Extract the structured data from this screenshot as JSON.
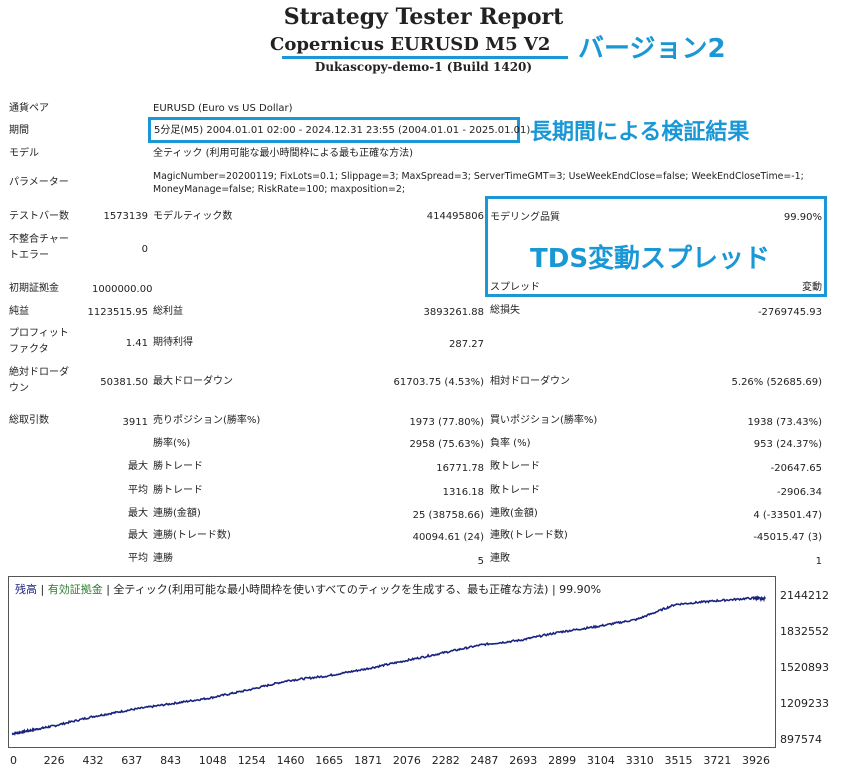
{
  "report": {
    "title": "Strategy Tester Report",
    "subtitle": "Copernicus  EURUSD  M5  V2",
    "server": "Dukascopy-demo-1 (Build 1420)"
  },
  "annotations": {
    "version": "バージョン2",
    "long_period": "長期間による検証結果",
    "spread": "TDS変動スプレッド"
  },
  "settings": {
    "symbol_label": "通貨ペア",
    "symbol_value": "EURUSD (Euro vs US Dollar)",
    "period_label": "期間",
    "period_value": "5分足(M5) 2004.01.01 02:00 - 2024.12.31 23:55 (2004.01.01 - 2025.01.01)",
    "model_label": "モデル",
    "model_value": "全ティック (利用可能な最小時間枠による最も正確な方法)",
    "params_label": "パラメーター",
    "params_line1": "MagicNumber=20200119; FixLots=0.1; Slippage=3; MaxSpread=3; ServerTimeGMT=3; UseWeekEndClose=false; WeekEndCloseTime=-1;",
    "params_line2": "MoneyManage=false; RiskRate=100; maxposition=2;"
  },
  "stats": {
    "bars_label": "テストバー数",
    "bars_value": "1573139",
    "ticks_label": "モデルティック数",
    "ticks_value": "414495806",
    "quality_label": "モデリング品質",
    "quality_value": "99.90%",
    "mismatch_label1": "不整合チャー",
    "mismatch_label2": "トエラー",
    "mismatch_value": "0",
    "deposit_label": "初期証拠金",
    "deposit_value": "1000000.00",
    "spread_label": "スプレッド",
    "spread_value": "変動",
    "net_label": "純益",
    "net_value": "1123515.95",
    "gross_profit_label": "総利益",
    "gross_profit_value": "3893261.88",
    "gross_loss_label": "総損失",
    "gross_loss_value": "-2769745.93",
    "pf_label1": "プロフィット",
    "pf_label2": "ファクタ",
    "pf_value": "1.41",
    "expected_label": "期待利得",
    "expected_value": "287.27",
    "abs_dd_label1": "絶対ドローダ",
    "abs_dd_label2": "ウン",
    "abs_dd_value": "50381.50",
    "max_dd_label": "最大ドローダウン",
    "max_dd_value": "61703.75 (4.53%)",
    "rel_dd_label": "相対ドローダウン",
    "rel_dd_value": "5.26% (52685.69)",
    "trades_label": "総取引数",
    "trades_value": "3911",
    "short_label": "売りポジション(勝率%)",
    "short_value": "1973 (77.80%)",
    "long_label": "買いポジション(勝率%)",
    "long_value": "1938 (73.43%)",
    "win_label": "勝率(%)",
    "win_value": "2958 (75.63%)",
    "loss_label": "負率 (%)",
    "loss_value": "953 (24.37%)",
    "max_word": "最大",
    "avg_word": "平均",
    "largest_win_label": "勝トレード",
    "largest_win_value": "16771.78",
    "largest_loss_label": "敗トレード",
    "largest_loss_value": "-20647.65",
    "avg_win_label": "勝トレード",
    "avg_win_value": "1316.18",
    "avg_loss_label": "敗トレード",
    "avg_loss_value": "-2906.34",
    "cons_win_amt_label": "連勝(金額)",
    "cons_win_amt_value": "25 (38758.66)",
    "cons_loss_amt_label": "連敗(金額)",
    "cons_loss_amt_value": "4 (-33501.47)",
    "cons_win_tr_label": "連勝(トレード数)",
    "cons_win_tr_value": "40094.61 (24)",
    "cons_loss_tr_label": "連敗(トレード数)",
    "cons_loss_tr_value": "-45015.47 (3)",
    "avg_cons_win_label": "連勝",
    "avg_cons_win_value": "5",
    "avg_cons_loss_label": "連敗",
    "avg_cons_loss_value": "1"
  },
  "chart_legend": {
    "balance": "残高",
    "sep1": " | ",
    "equity": "有効証拠金",
    "sep2": " | ",
    "desc": "全ティック(利用可能な最小時間枠を使いすべてのティックを生成する、最も正確な方法) | 99.90%",
    "balance_color": "#1a237e",
    "equity_color": "#2e7d32"
  },
  "chart_data": {
    "type": "line",
    "x_ticks": [
      "0",
      "226",
      "432",
      "637",
      "843",
      "1048",
      "1254",
      "1460",
      "1665",
      "1871",
      "2076",
      "2282",
      "2487",
      "2693",
      "2899",
      "3104",
      "3310",
      "3515",
      "3721",
      "3926"
    ],
    "y_ticks": [
      "2144212",
      "1832552",
      "1520893",
      "1209233",
      "897574"
    ],
    "ylim": [
      897574,
      2144212
    ],
    "xlim": [
      0,
      4000
    ],
    "grid": false,
    "series": [
      {
        "color": "#1a237e",
        "x": [
          0,
          100,
          226,
          432,
          637,
          843,
          1048,
          1254,
          1460,
          1665,
          1871,
          2076,
          2282,
          2487,
          2693,
          2899,
          3104,
          3310,
          3515,
          3721,
          3926,
          3990
        ],
        "y": [
          960000,
          990000,
          1030000,
          1110000,
          1170000,
          1220000,
          1270000,
          1340000,
          1420000,
          1460000,
          1520000,
          1590000,
          1660000,
          1730000,
          1770000,
          1840000,
          1890000,
          1950000,
          2080000,
          2110000,
          2135000,
          2130000
        ]
      }
    ]
  }
}
